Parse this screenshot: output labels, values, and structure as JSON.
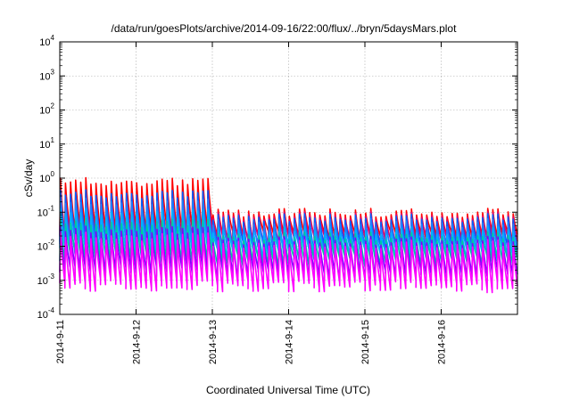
{
  "chart_data": {
    "type": "line",
    "title": "/data/run/goesPlots/archive/2014-09-16/22:00/flux/../bryn/5daysMars.plot",
    "xlabel": "Coordinated Universal Time (UTC)",
    "ylabel": "cSv/day",
    "yscale": "log",
    "ylim": [
      0.0001,
      10000
    ],
    "y_ticks": [
      {
        "base": "10",
        "exp": "-4"
      },
      {
        "base": "10",
        "exp": "-3"
      },
      {
        "base": "10",
        "exp": "-2"
      },
      {
        "base": "10",
        "exp": "-1"
      },
      {
        "base": "10",
        "exp": "0"
      },
      {
        "base": "10",
        "exp": "1"
      },
      {
        "base": "10",
        "exp": "2"
      },
      {
        "base": "10",
        "exp": "3"
      },
      {
        "base": "10",
        "exp": "4"
      }
    ],
    "x_ticks": [
      "2014-9-11",
      "2014-9-12",
      "2014-9-13",
      "2014-9-14",
      "2014-9-15",
      "2014-9-16"
    ],
    "xlim_days": [
      0,
      6
    ],
    "grid": true,
    "legend": "none",
    "sawtooth_period_days": 0.0667,
    "series": [
      {
        "color": "#ff0000",
        "peak_before": 0.8,
        "peak_after": 0.1,
        "trough_before": 0.03,
        "trough_after": 0.02
      },
      {
        "color": "#e00070",
        "peak_before": 0.35,
        "peak_after": 0.08,
        "trough_before": 0.02,
        "trough_after": 0.015
      },
      {
        "color": "#0060ff",
        "peak_before": 0.35,
        "peak_after": 0.07,
        "trough_before": 0.015,
        "trough_after": 0.01
      },
      {
        "color": "#2080ff",
        "peak_before": 0.2,
        "peak_after": 0.05,
        "trough_before": 0.012,
        "trough_after": 0.008
      },
      {
        "color": "#00b0ff",
        "peak_before": 0.1,
        "peak_after": 0.03,
        "trough_before": 0.008,
        "trough_after": 0.006
      },
      {
        "color": "#00c8a0",
        "peak_before": 0.05,
        "peak_after": 0.02,
        "trough_before": 0.005,
        "trough_after": 0.004
      },
      {
        "color": "#8000ff",
        "peak_before": 0.03,
        "peak_after": 0.015,
        "trough_before": 0.002,
        "trough_after": 0.0015
      },
      {
        "color": "#ff00ff",
        "peak_before": 0.02,
        "peak_after": 0.012,
        "trough_before": 0.0008,
        "trough_after": 0.0007
      }
    ]
  }
}
